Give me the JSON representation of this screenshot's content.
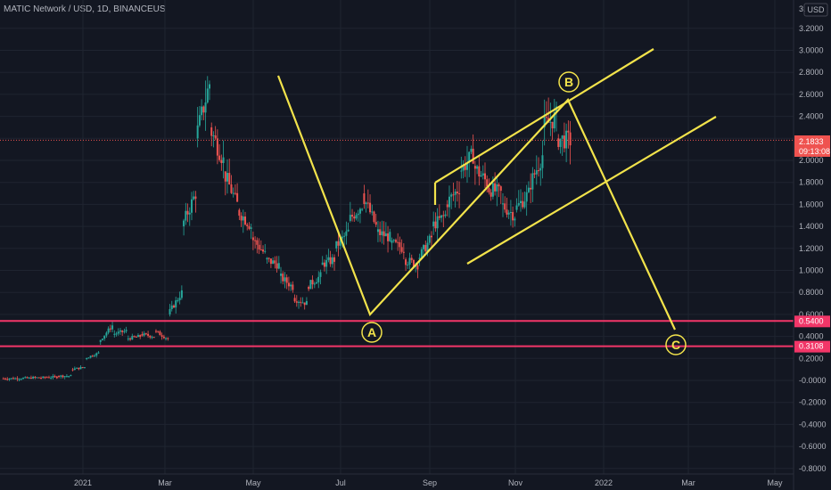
{
  "header": {
    "symbol_line": "MATIC Network / USD, 1D, BINANCEUS"
  },
  "price_axis": {
    "currency_badge": "USD",
    "top_partial_label": "3.",
    "ticks": [
      "3.2000",
      "3.0000",
      "2.8000",
      "2.6000",
      "2.4000",
      "2.2000",
      "2.0000",
      "1.8000",
      "1.6000",
      "1.4000",
      "1.2000",
      "1.0000",
      "0.8000",
      "0.6000",
      "0.4000",
      "0.2000",
      "-0.0000",
      "-0.2000",
      "-0.4000",
      "-0.6000",
      "-0.8000"
    ],
    "tick_values": [
      3.2,
      3.0,
      2.8,
      2.6,
      2.4,
      2.2,
      2.0,
      1.8,
      1.6,
      1.4,
      1.2,
      1.0,
      0.8,
      0.6,
      0.4,
      0.2,
      0.0,
      -0.2,
      -0.4,
      -0.6,
      -0.8
    ]
  },
  "time_axis": {
    "labels": [
      "2021",
      "Mar",
      "May",
      "Jul",
      "Sep",
      "Nov",
      "2022",
      "Mar",
      "May"
    ]
  },
  "current_price": {
    "value": "2.1833",
    "countdown": "09:13:08",
    "color": "#ef5350"
  },
  "levels": [
    {
      "label": "0.5400",
      "value": 0.54,
      "color": "#f23668"
    },
    {
      "label": "0.3108",
      "value": 0.3108,
      "color": "#f23668"
    }
  ],
  "wave_points": [
    {
      "label": "A",
      "color": "#f2e34b"
    },
    {
      "label": "B",
      "color": "#f2e34b"
    },
    {
      "label": "C",
      "color": "#f2e34b"
    }
  ],
  "colors": {
    "up": "#26a69a",
    "down": "#ef5350",
    "drawing": "#f2e34b",
    "background": "#131722",
    "grid": "#1f2430"
  },
  "chart_data": {
    "type": "candlestick",
    "title": "MATIC Network / USD, 1D, BINANCEUS",
    "ylim": [
      -0.8,
      3.2
    ],
    "x_labels": [
      "2021",
      "Mar",
      "May",
      "Jul",
      "Sep",
      "Nov",
      "2022",
      "Mar",
      "May"
    ],
    "series": [
      {
        "price_path": [
          [
            0.018,
            0.018
          ],
          [
            0.02,
            0.02
          ],
          [
            0.025,
            0.025
          ],
          [
            0.03,
            0.03
          ],
          [
            0.04,
            0.04
          ],
          [
            0.1,
            0.12
          ],
          [
            0.2,
            0.25
          ],
          [
            0.35,
            0.5
          ],
          [
            0.42,
            0.45
          ],
          [
            0.38,
            0.4
          ],
          [
            0.42,
            0.4
          ],
          [
            0.45,
            0.38
          ],
          [
            0.6,
            0.8
          ],
          [
            1.4,
            1.7
          ],
          [
            2.2,
            2.7
          ],
          [
            2.3,
            2.0
          ],
          [
            1.9,
            1.6
          ],
          [
            1.55,
            1.4
          ],
          [
            1.3,
            1.15
          ],
          [
            1.1,
            1.05
          ],
          [
            0.95,
            0.85
          ],
          [
            0.75,
            0.7
          ],
          [
            0.85,
            0.95
          ],
          [
            1.05,
            1.1
          ],
          [
            1.2,
            1.35
          ],
          [
            1.45,
            1.6
          ],
          [
            1.7,
            1.4
          ],
          [
            1.35,
            1.3
          ],
          [
            1.25,
            1.2
          ],
          [
            1.1,
            1.05
          ],
          [
            1.1,
            1.3
          ],
          [
            1.4,
            1.5
          ],
          [
            1.6,
            1.75
          ],
          [
            1.9,
            2.05
          ],
          [
            1.95,
            1.8
          ],
          [
            1.75,
            1.7
          ],
          [
            1.6,
            1.5
          ],
          [
            1.55,
            1.7
          ],
          [
            1.75,
            2.05
          ],
          [
            2.3,
            2.4
          ],
          [
            2.2,
            2.18
          ]
        ]
      }
    ]
  }
}
